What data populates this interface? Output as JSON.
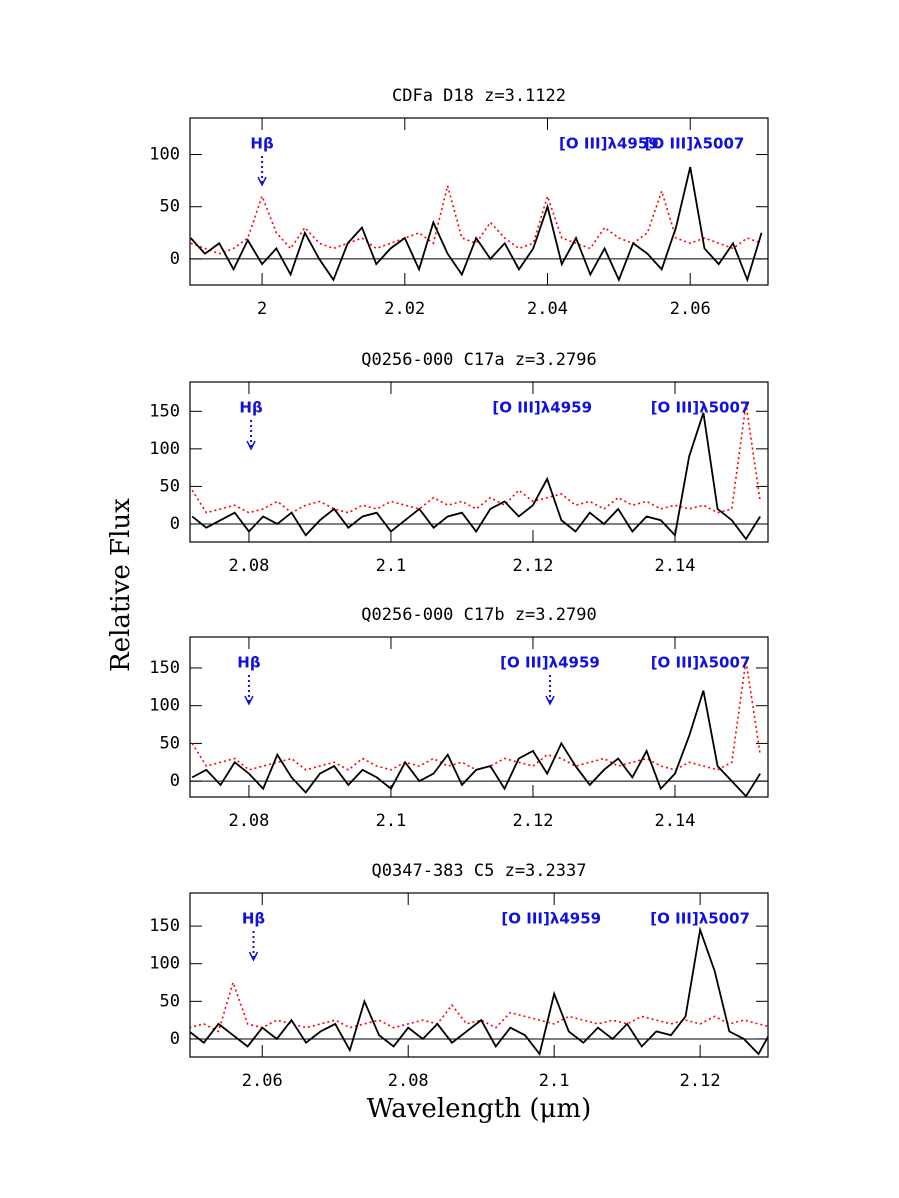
{
  "ylabel": "Relative Flux",
  "xlabel": "Wavelength (μm)",
  "chart_data": [
    {
      "type": "line",
      "title": "CDFa D18 z=3.1122",
      "x": [
        1.99,
        1.992,
        1.994,
        1.996,
        1.998,
        2.0,
        2.002,
        2.004,
        2.006,
        2.008,
        2.01,
        2.012,
        2.014,
        2.016,
        2.018,
        2.02,
        2.022,
        2.024,
        2.026,
        2.028,
        2.03,
        2.032,
        2.034,
        2.036,
        2.038,
        2.04,
        2.042,
        2.044,
        2.046,
        2.048,
        2.05,
        2.052,
        2.054,
        2.056,
        2.058,
        2.06,
        2.062,
        2.064,
        2.066,
        2.068,
        2.07
      ],
      "series": [
        {
          "color": "#ff0000",
          "dash": true,
          "values": [
            15,
            10,
            5,
            10,
            20,
            60,
            25,
            10,
            30,
            15,
            10,
            15,
            20,
            10,
            15,
            20,
            25,
            15,
            70,
            20,
            15,
            35,
            20,
            10,
            15,
            60,
            20,
            15,
            10,
            30,
            20,
            15,
            25,
            65,
            20,
            15,
            20,
            15,
            10,
            20,
            15
          ]
        },
        {
          "color": "#000000",
          "dash": false,
          "values": [
            20,
            5,
            15,
            -10,
            18,
            -5,
            10,
            -15,
            25,
            0,
            -20,
            15,
            30,
            -5,
            10,
            20,
            -10,
            35,
            5,
            -15,
            20,
            0,
            15,
            -10,
            10,
            50,
            -5,
            20,
            -15,
            10,
            -20,
            15,
            5,
            -10,
            30,
            88,
            10,
            -5,
            15,
            -20,
            25
          ]
        }
      ],
      "hline": 0,
      "annotations": [
        {
          "text": "Hβ",
          "x": 2.0,
          "arrow": true
        },
        {
          "text": "[O III]λ4959",
          "x": 2.0486,
          "arrow": false
        },
        {
          "text": "[O III]λ5007",
          "x": 2.0606,
          "arrow": false
        }
      ],
      "xlim": [
        1.9899,
        2.0709
      ],
      "xticks": [
        2,
        2.02,
        2.04,
        2.06
      ],
      "ylim": [
        -25,
        135
      ],
      "yticks": [
        0,
        50,
        100
      ]
    },
    {
      "type": "line",
      "title": "Q0256-000 C17a z=3.2796",
      "x": [
        2.072,
        2.074,
        2.076,
        2.078,
        2.08,
        2.082,
        2.084,
        2.086,
        2.088,
        2.09,
        2.092,
        2.094,
        2.096,
        2.098,
        2.1,
        2.102,
        2.104,
        2.106,
        2.108,
        2.11,
        2.112,
        2.114,
        2.116,
        2.118,
        2.12,
        2.122,
        2.124,
        2.126,
        2.128,
        2.13,
        2.132,
        2.134,
        2.136,
        2.138,
        2.14,
        2.142,
        2.144,
        2.146,
        2.148,
        2.15,
        2.152
      ],
      "series": [
        {
          "color": "#ff0000",
          "dash": true,
          "values": [
            45,
            15,
            20,
            25,
            15,
            20,
            30,
            15,
            25,
            30,
            20,
            15,
            25,
            20,
            30,
            25,
            20,
            35,
            25,
            30,
            20,
            35,
            25,
            45,
            30,
            35,
            40,
            25,
            30,
            20,
            35,
            25,
            30,
            20,
            25,
            20,
            25,
            15,
            20,
            160,
            30
          ]
        },
        {
          "color": "#000000",
          "dash": false,
          "values": [
            10,
            -5,
            5,
            15,
            -10,
            10,
            0,
            15,
            -15,
            5,
            20,
            -5,
            10,
            15,
            -10,
            5,
            20,
            -5,
            10,
            15,
            -10,
            20,
            30,
            10,
            25,
            60,
            5,
            -10,
            15,
            0,
            20,
            -10,
            10,
            5,
            -15,
            90,
            148,
            20,
            5,
            -20,
            10
          ]
        }
      ],
      "hline": 0,
      "annotations": [
        {
          "text": "Hβ",
          "x": 2.0803,
          "arrow": true
        },
        {
          "text": "[O III]λ4959",
          "x": 2.1213,
          "arrow": false
        },
        {
          "text": "[O III]λ5007",
          "x": 2.1436,
          "arrow": false
        }
      ],
      "xlim": [
        2.0717,
        2.1531
      ],
      "xticks": [
        2.08,
        2.1,
        2.12,
        2.14
      ],
      "ylim": [
        -24,
        189
      ],
      "yticks": [
        0,
        50,
        100,
        150
      ]
    },
    {
      "type": "line",
      "title": "Q0256-000 C17b z=3.2790",
      "x": [
        2.072,
        2.074,
        2.076,
        2.078,
        2.08,
        2.082,
        2.084,
        2.086,
        2.088,
        2.09,
        2.092,
        2.094,
        2.096,
        2.098,
        2.1,
        2.102,
        2.104,
        2.106,
        2.108,
        2.11,
        2.112,
        2.114,
        2.116,
        2.118,
        2.12,
        2.122,
        2.124,
        2.126,
        2.128,
        2.13,
        2.132,
        2.134,
        2.136,
        2.138,
        2.14,
        2.142,
        2.144,
        2.146,
        2.148,
        2.15,
        2.152
      ],
      "series": [
        {
          "color": "#ff0000",
          "dash": true,
          "values": [
            50,
            20,
            25,
            30,
            15,
            20,
            25,
            30,
            15,
            20,
            25,
            15,
            30,
            20,
            15,
            25,
            20,
            30,
            20,
            25,
            15,
            20,
            30,
            25,
            20,
            35,
            30,
            20,
            25,
            30,
            20,
            25,
            30,
            20,
            15,
            25,
            20,
            15,
            25,
            160,
            35
          ]
        },
        {
          "color": "#000000",
          "dash": false,
          "values": [
            5,
            15,
            -5,
            25,
            10,
            -10,
            35,
            5,
            -15,
            10,
            20,
            -5,
            15,
            5,
            -10,
            25,
            0,
            10,
            35,
            -5,
            15,
            20,
            -10,
            30,
            40,
            10,
            50,
            20,
            -5,
            15,
            30,
            5,
            40,
            -10,
            10,
            60,
            120,
            20,
            0,
            -20,
            10
          ]
        }
      ],
      "hline": 0,
      "annotations": [
        {
          "text": "Hβ",
          "x": 2.08,
          "arrow": true
        },
        {
          "text": "[O III]λ4959",
          "x": 2.1224,
          "arrow": true
        },
        {
          "text": "[O III]λ5007",
          "x": 2.1436,
          "arrow": false
        }
      ],
      "xlim": [
        2.0717,
        2.1531
      ],
      "xticks": [
        2.08,
        2.1,
        2.12,
        2.14
      ],
      "ylim": [
        -21,
        191
      ],
      "yticks": [
        0,
        50,
        100,
        150
      ]
    },
    {
      "type": "line",
      "title": "Q0347-383 C5 z=3.2337",
      "x": [
        2.05,
        2.052,
        2.054,
        2.056,
        2.058,
        2.06,
        2.062,
        2.064,
        2.066,
        2.068,
        2.07,
        2.072,
        2.074,
        2.076,
        2.078,
        2.08,
        2.082,
        2.084,
        2.086,
        2.088,
        2.09,
        2.092,
        2.094,
        2.096,
        2.098,
        2.1,
        2.102,
        2.104,
        2.106,
        2.108,
        2.11,
        2.112,
        2.114,
        2.116,
        2.118,
        2.12,
        2.122,
        2.124,
        2.126,
        2.128,
        2.13
      ],
      "series": [
        {
          "color": "#ff0000",
          "dash": true,
          "values": [
            15,
            20,
            10,
            75,
            20,
            15,
            25,
            20,
            15,
            20,
            25,
            15,
            20,
            25,
            15,
            20,
            25,
            20,
            45,
            20,
            25,
            15,
            35,
            30,
            25,
            20,
            30,
            25,
            20,
            25,
            20,
            30,
            25,
            20,
            25,
            20,
            30,
            20,
            25,
            20,
            15
          ]
        },
        {
          "color": "#000000",
          "dash": false,
          "values": [
            10,
            -5,
            20,
            5,
            -10,
            15,
            0,
            25,
            -5,
            10,
            20,
            -15,
            50,
            5,
            -10,
            15,
            0,
            20,
            -5,
            10,
            25,
            -10,
            15,
            5,
            -20,
            60,
            10,
            -5,
            15,
            0,
            20,
            -10,
            10,
            5,
            30,
            145,
            90,
            10,
            0,
            -20,
            15
          ]
        }
      ],
      "hline": 0,
      "annotations": [
        {
          "text": "Hβ",
          "x": 2.0588,
          "arrow": true
        },
        {
          "text": "[O III]λ4959",
          "x": 2.0996,
          "arrow": false
        },
        {
          "text": "[O III]λ5007",
          "x": 2.12,
          "arrow": false
        }
      ],
      "xlim": [
        2.0501,
        2.1293
      ],
      "xticks": [
        2.06,
        2.08,
        2.1,
        2.12
      ],
      "ylim": [
        -24,
        194
      ],
      "yticks": [
        0,
        50,
        100,
        150
      ]
    }
  ]
}
